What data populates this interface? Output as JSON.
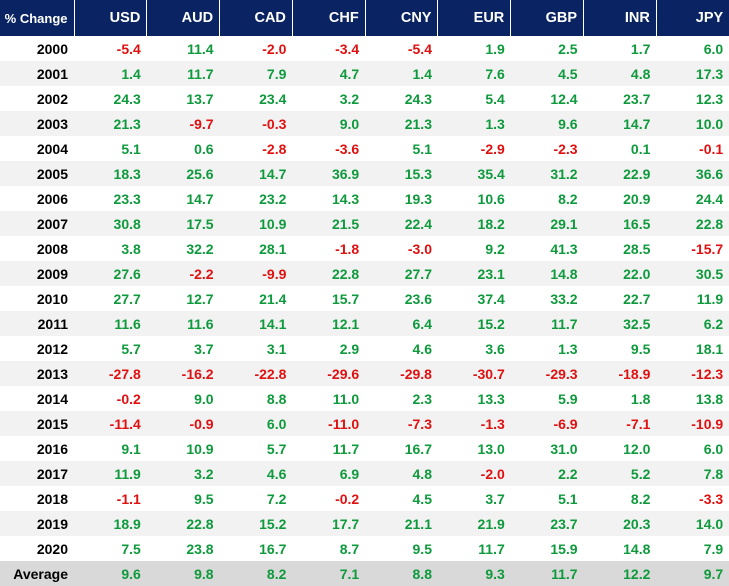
{
  "table": {
    "header": [
      "% Change",
      "USD",
      "AUD",
      "CAD",
      "CHF",
      "CNY",
      "EUR",
      "GBP",
      "INR",
      "JPY"
    ],
    "rows": [
      [
        "2000",
        "-5.4",
        "11.4",
        "-2.0",
        "-3.4",
        "-5.4",
        "1.9",
        "2.5",
        "1.7",
        "6.0"
      ],
      [
        "2001",
        "1.4",
        "11.7",
        "7.9",
        "4.7",
        "1.4",
        "7.6",
        "4.5",
        "4.8",
        "17.3"
      ],
      [
        "2002",
        "24.3",
        "13.7",
        "23.4",
        "3.2",
        "24.3",
        "5.4",
        "12.4",
        "23.7",
        "12.3"
      ],
      [
        "2003",
        "21.3",
        "-9.7",
        "-0.3",
        "9.0",
        "21.3",
        "1.3",
        "9.6",
        "14.7",
        "10.0"
      ],
      [
        "2004",
        "5.1",
        "0.6",
        "-2.8",
        "-3.6",
        "5.1",
        "-2.9",
        "-2.3",
        "0.1",
        "-0.1"
      ],
      [
        "2005",
        "18.3",
        "25.6",
        "14.7",
        "36.9",
        "15.3",
        "35.4",
        "31.2",
        "22.9",
        "36.6"
      ],
      [
        "2006",
        "23.3",
        "14.7",
        "23.2",
        "14.3",
        "19.3",
        "10.6",
        "8.2",
        "20.9",
        "24.4"
      ],
      [
        "2007",
        "30.8",
        "17.5",
        "10.9",
        "21.5",
        "22.4",
        "18.2",
        "29.1",
        "16.5",
        "22.8"
      ],
      [
        "2008",
        "3.8",
        "32.2",
        "28.1",
        "-1.8",
        "-3.0",
        "9.2",
        "41.3",
        "28.5",
        "-15.7"
      ],
      [
        "2009",
        "27.6",
        "-2.2",
        "-9.9",
        "22.8",
        "27.7",
        "23.1",
        "14.8",
        "22.0",
        "30.5"
      ],
      [
        "2010",
        "27.7",
        "12.7",
        "21.4",
        "15.7",
        "23.6",
        "37.4",
        "33.2",
        "22.7",
        "11.9"
      ],
      [
        "2011",
        "11.6",
        "11.6",
        "14.1",
        "12.1",
        "6.4",
        "15.2",
        "11.7",
        "32.5",
        "6.2"
      ],
      [
        "2012",
        "5.7",
        "3.7",
        "3.1",
        "2.9",
        "4.6",
        "3.6",
        "1.3",
        "9.5",
        "18.1"
      ],
      [
        "2013",
        "-27.8",
        "-16.2",
        "-22.8",
        "-29.6",
        "-29.8",
        "-30.7",
        "-29.3",
        "-18.9",
        "-12.3"
      ],
      [
        "2014",
        "-0.2",
        "9.0",
        "8.8",
        "11.0",
        "2.3",
        "13.3",
        "5.9",
        "1.8",
        "13.8"
      ],
      [
        "2015",
        "-11.4",
        "-0.9",
        "6.0",
        "-11.0",
        "-7.3",
        "-1.3",
        "-6.9",
        "-7.1",
        "-10.9"
      ],
      [
        "2016",
        "9.1",
        "10.9",
        "5.7",
        "11.7",
        "16.7",
        "13.0",
        "31.0",
        "12.0",
        "6.0"
      ],
      [
        "2017",
        "11.9",
        "3.2",
        "4.6",
        "6.9",
        "4.8",
        "-2.0",
        "2.2",
        "5.2",
        "7.8"
      ],
      [
        "2018",
        "-1.1",
        "9.5",
        "7.2",
        "-0.2",
        "4.5",
        "3.7",
        "5.1",
        "8.2",
        "-3.3"
      ],
      [
        "2019",
        "18.9",
        "22.8",
        "15.2",
        "17.7",
        "21.1",
        "21.9",
        "23.7",
        "20.3",
        "14.0"
      ],
      [
        "2020",
        "7.5",
        "23.8",
        "16.7",
        "8.7",
        "9.5",
        "11.7",
        "15.9",
        "14.8",
        "7.9"
      ]
    ],
    "footer": [
      "Average",
      "9.6",
      "9.8",
      "8.2",
      "7.1",
      "8.8",
      "9.3",
      "11.7",
      "12.2",
      "9.7"
    ]
  }
}
